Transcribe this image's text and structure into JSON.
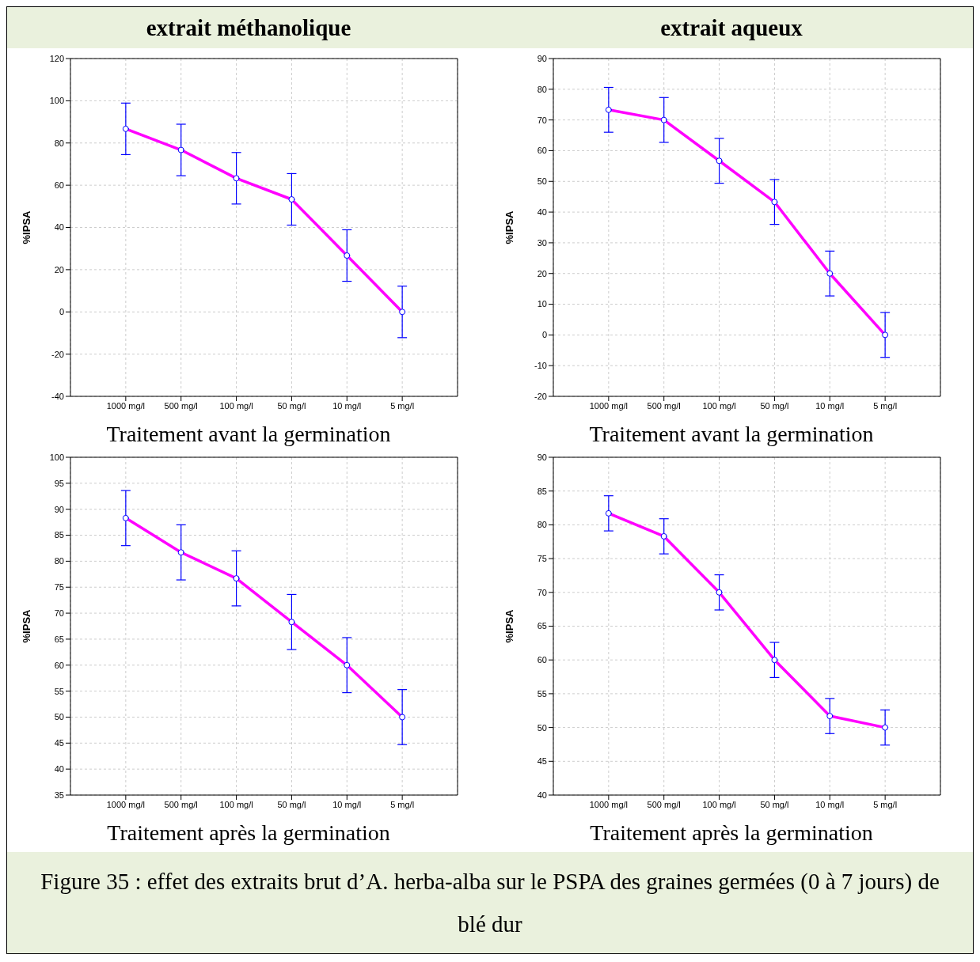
{
  "chart_data": [
    {
      "type": "line",
      "title": "extrait méthanolique",
      "xlabel": "Traitement avant la germination",
      "ylabel": "%IPSA",
      "categories": [
        "1000 mg/l",
        "500 mg/l",
        "100 mg/l",
        "50 mg/l",
        "10 mg/l",
        "5 mg/l"
      ],
      "values": [
        86.7,
        76.7,
        63.3,
        53.3,
        26.7,
        0
      ],
      "errors": [
        12.2,
        12.2,
        12.2,
        12.2,
        12.2,
        12.2
      ],
      "color": "#ff00ff",
      "marker": "circle",
      "line_style": "solid",
      "ylim": [
        -40,
        120
      ],
      "yticks": [
        -40,
        -20,
        0,
        20,
        40,
        60,
        80,
        100,
        120
      ],
      "grid": true
    },
    {
      "type": "line",
      "title": "extrait aqueux",
      "xlabel": "Traitement avant la germination",
      "ylabel": "%IPSA",
      "categories": [
        "1000 mg/l",
        "500 mg/l",
        "100 mg/l",
        "50 mg/l",
        "10 mg/l",
        "5 mg/l"
      ],
      "values": [
        73.3,
        70,
        56.7,
        43.3,
        20,
        0
      ],
      "errors": [
        7.3,
        7.3,
        7.3,
        7.3,
        7.3,
        7.3
      ],
      "color": "#ff00ff",
      "marker": "circle",
      "line_style": "solid",
      "ylim": [
        -20,
        90
      ],
      "yticks": [
        -20,
        -10,
        0,
        10,
        20,
        30,
        40,
        50,
        60,
        70,
        80,
        90
      ],
      "grid": true
    },
    {
      "type": "line",
      "xlabel": "Traitement après la germination",
      "ylabel": "%IPSA",
      "categories": [
        "1000 mg/l",
        "500 mg/l",
        "100 mg/l",
        "50 mg/l",
        "10 mg/l",
        "5 mg/l"
      ],
      "values": [
        88.3,
        81.7,
        76.7,
        68.3,
        60,
        50
      ],
      "errors": [
        5.3,
        5.3,
        5.3,
        5.3,
        5.3,
        5.3
      ],
      "color": "#ff00ff",
      "marker": "circle",
      "line_style": "solid",
      "ylim": [
        35,
        100
      ],
      "yticks": [
        35,
        40,
        45,
        50,
        55,
        60,
        65,
        70,
        75,
        80,
        85,
        90,
        95,
        100
      ],
      "grid": true
    },
    {
      "type": "line",
      "xlabel": "Traitement après la germination",
      "ylabel": "%IPSA",
      "categories": [
        "1000 mg/l",
        "500 mg/l",
        "100 mg/l",
        "50 mg/l",
        "10 mg/l",
        "5 mg/l"
      ],
      "values": [
        81.7,
        78.3,
        70,
        60,
        51.7,
        50
      ],
      "errors": [
        2.6,
        2.6,
        2.6,
        2.6,
        2.6,
        2.6
      ],
      "color": "#ff00ff",
      "marker": "circle",
      "line_style": "solid",
      "ylim": [
        40,
        90
      ],
      "yticks": [
        40,
        45,
        50,
        55,
        60,
        65,
        70,
        75,
        80,
        85,
        90
      ],
      "grid": true,
      "annotations": [
        "Figure 35 : effet des extraits brut d’A. herba-alba sur le PSPA des graines germées (0 à 7 jours) de blé dur"
      ]
    }
  ]
}
